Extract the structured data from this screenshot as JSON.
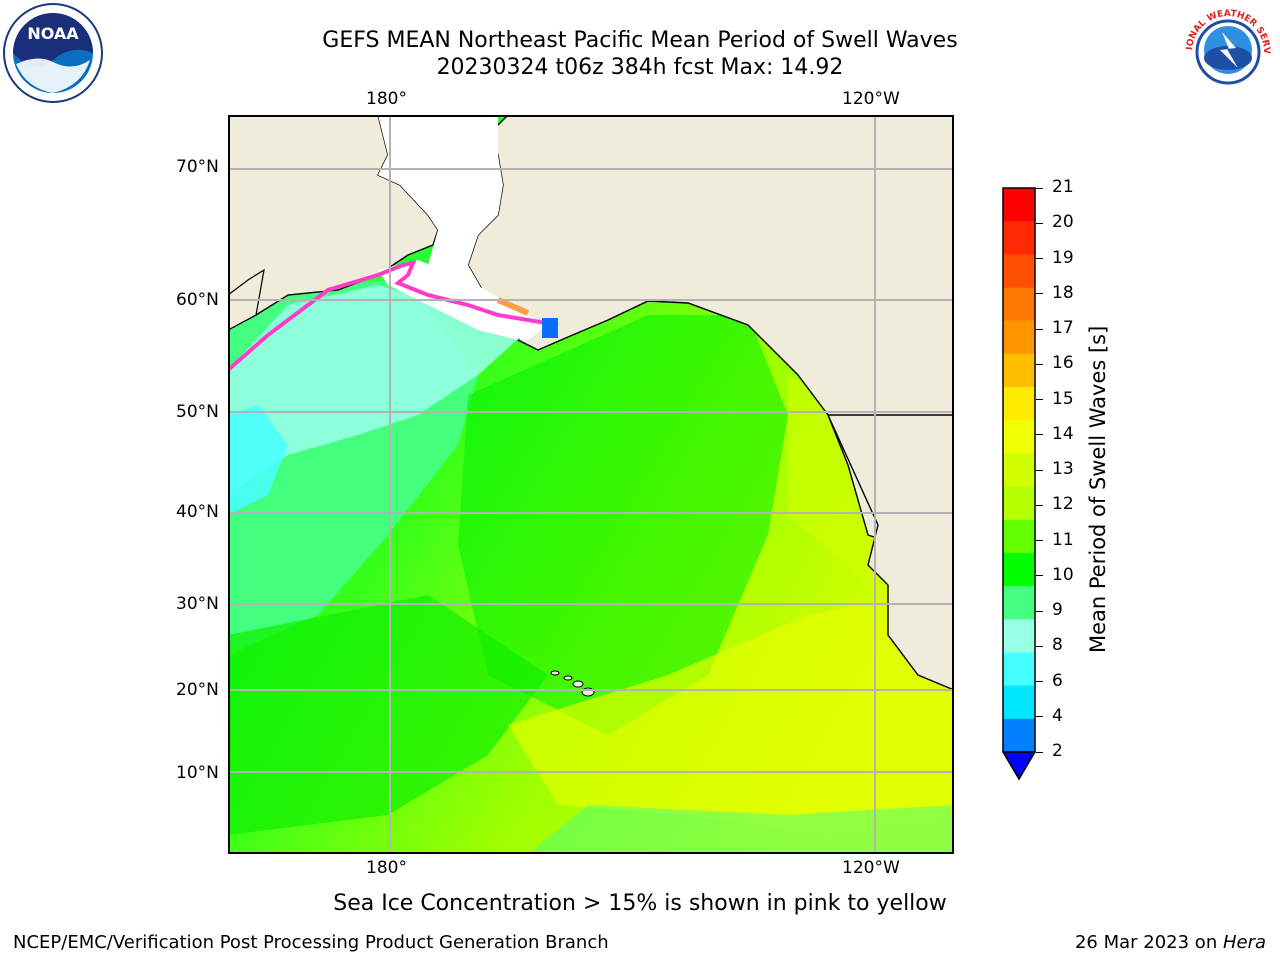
{
  "title": {
    "line1": "GEFS MEAN Northeast Pacific Mean Period of Swell Waves",
    "line2": "20230324 t06z 384h fcst   Max: 14.92"
  },
  "map": {
    "projection": "lat-lon, Northeast Pacific",
    "lon_labels_top": [
      "180°",
      "120°W"
    ],
    "lon_labels_bottom": [
      "180°",
      "120°W"
    ],
    "lat_labels": [
      "70°N",
      "60°N",
      "50°N",
      "40°N",
      "30°N",
      "20°N",
      "10°N"
    ],
    "gridlines": true,
    "land_color": "#efecdc",
    "ocean_field": "Mean Period of Swell Waves",
    "typical_values": {
      "far_west_north": "7–9 s",
      "central_north": "10–12 s",
      "subtropics_east": "12–14 s"
    }
  },
  "colorbar": {
    "label": "Mean Period of Swell Waves [s]",
    "ticks": [
      "21",
      "20",
      "19",
      "18",
      "17",
      "16",
      "15",
      "14",
      "13",
      "12",
      "11",
      "10",
      "9",
      "8",
      "6",
      "4",
      "2"
    ],
    "colors": [
      "#ff0000",
      "#ff2800",
      "#ff5000",
      "#ff7800",
      "#ff9600",
      "#ffbe00",
      "#ffeb00",
      "#f0ff00",
      "#d2ff00",
      "#b4ff00",
      "#64ff00",
      "#00ff00",
      "#46ff82",
      "#96ffe6",
      "#46ffff",
      "#00e6ff",
      "#0080ff",
      "#0000ff"
    ]
  },
  "note": "Sea Ice Concentration > 15% is shown in pink to yellow",
  "footer": {
    "left": "NCEP/EMC/Verification Post Processing Product Generation Branch",
    "right_date": "26 Mar 2023 on ",
    "right_host": "Hera"
  },
  "logos": {
    "noaa": "NOAA",
    "nws": "NATIONAL WEATHER SERVICE"
  }
}
